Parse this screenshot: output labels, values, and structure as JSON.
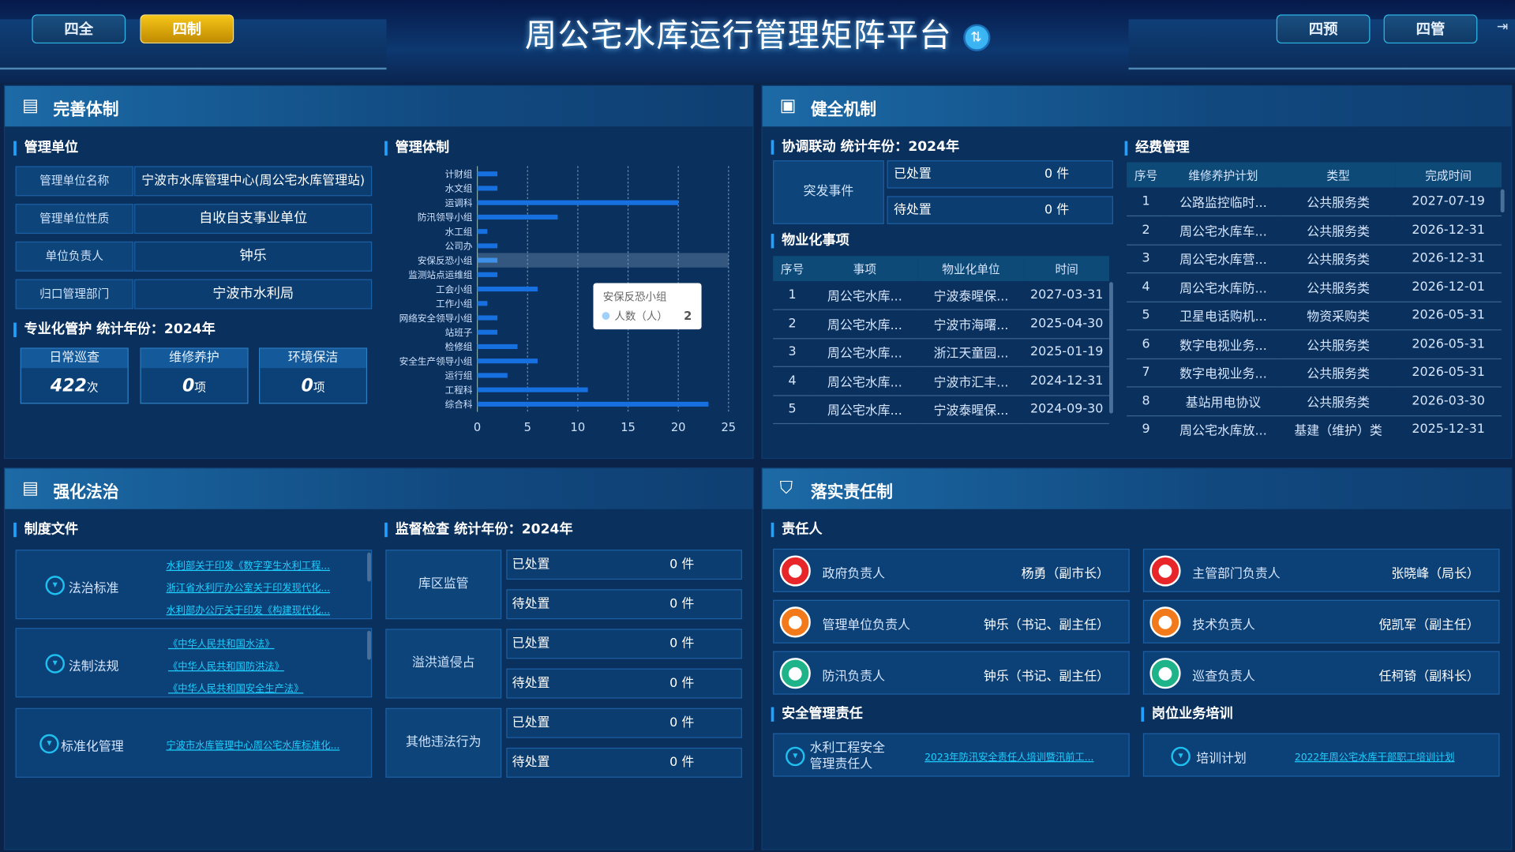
{
  "header": {
    "title": "周公宅水库运行管理矩阵平台",
    "nav": [
      "四全",
      "四制",
      "四预",
      "四管"
    ],
    "active": "四制",
    "badge": "⇅"
  },
  "colors": {
    "accent": "#20a0ff",
    "active_nav": "#f5c518",
    "bar": "#1670e0",
    "link": "#1ed0ff",
    "red": "#e8262a",
    "orange": "#f27a1a",
    "green": "#1fb38a"
  },
  "panel1": {
    "title": "完善体制",
    "unit": {
      "title": "管理单位",
      "rows": [
        {
          "label": "管理单位名称",
          "value": "宁波市水库管理中心(周公宅水库管理站)"
        },
        {
          "label": "管理单位性质",
          "value": "自收自支事业单位"
        },
        {
          "label": "单位负责人",
          "value": "钟乐"
        },
        {
          "label": "归口管理部门",
          "value": "宁波市水利局"
        }
      ]
    },
    "pro": {
      "title": "专业化管护",
      "year": "统计年份：2024年",
      "cards": [
        {
          "label": "日常巡查",
          "value": "422",
          "unit": "次"
        },
        {
          "label": "维修养护",
          "value": "0",
          "unit": "项"
        },
        {
          "label": "环境保洁",
          "value": "0",
          "unit": "项"
        }
      ]
    },
    "chart_title": "管理体制"
  },
  "chart_data": {
    "type": "bar",
    "orientation": "horizontal",
    "categories": [
      "计财组",
      "水文组",
      "运调科",
      "防汛领导小组",
      "水工组",
      "公司办",
      "安保反恐小组",
      "监测站点运维组",
      "工会小组",
      "工作小组",
      "网络安全领导小组",
      "站班子",
      "检修组",
      "安全生产领导小组",
      "运行组",
      "工程科",
      "综合科"
    ],
    "series": [
      {
        "name": "人数（人）",
        "values": [
          2,
          2,
          20,
          8,
          1,
          2,
          2,
          2,
          6,
          1,
          2,
          2,
          4,
          6,
          3,
          11,
          23
        ]
      }
    ],
    "xlim": [
      0,
      25
    ],
    "xticks": [
      0,
      5,
      10,
      15,
      20,
      25
    ],
    "grid": true,
    "tooltip": {
      "category": "安保反恐小组",
      "series": "人数（人）",
      "value": "2"
    }
  },
  "panel2": {
    "title": "健全机制",
    "coord": {
      "title": "协调联动",
      "year": "统计年份：2024年",
      "label": "突发事件",
      "rows": [
        {
          "k": "已处置",
          "v": "0 件"
        },
        {
          "k": "待处置",
          "v": "0 件"
        }
      ]
    },
    "prop": {
      "title": "物业化事项",
      "headers": [
        "序号",
        "事项",
        "物业化单位",
        "时间"
      ],
      "rows": [
        [
          "1",
          "周公宅水库...",
          "宁波泰暒保...",
          "2027-03-31"
        ],
        [
          "2",
          "周公宅水库...",
          "宁波市海曙...",
          "2025-04-30"
        ],
        [
          "3",
          "周公宅水库...",
          "浙江天童园...",
          "2025-01-19"
        ],
        [
          "4",
          "周公宅水库...",
          "宁波市汇丰...",
          "2024-12-31"
        ],
        [
          "5",
          "周公宅水库...",
          "宁波泰暒保...",
          "2024-09-30"
        ]
      ]
    },
    "fund": {
      "title": "经费管理",
      "headers": [
        "序号",
        "维修养护计划",
        "类型",
        "完成时间"
      ],
      "rows": [
        [
          "1",
          "公路监控临时...",
          "公共服务类",
          "2027-07-19"
        ],
        [
          "2",
          "周公宅水库车...",
          "公共服务类",
          "2026-12-31"
        ],
        [
          "3",
          "周公宅水库营...",
          "公共服务类",
          "2026-12-31"
        ],
        [
          "4",
          "周公宅水库防...",
          "公共服务类",
          "2026-12-01"
        ],
        [
          "5",
          "卫星电话购机...",
          "物资采购类",
          "2026-05-31"
        ],
        [
          "6",
          "数字电视业务...",
          "公共服务类",
          "2026-05-31"
        ],
        [
          "7",
          "数字电视业务...",
          "公共服务类",
          "2026-05-31"
        ],
        [
          "8",
          "基站用电协议",
          "公共服务类",
          "2026-03-30"
        ],
        [
          "9",
          "周公宅水库放...",
          "基建（维护）类",
          "2025-12-31"
        ]
      ]
    }
  },
  "panel3": {
    "title": "强化法治",
    "docs": {
      "title": "制度文件",
      "groups": [
        {
          "label": "法治标准",
          "links": [
            "水利部关于印发《数字孪生水利工程...",
            "浙江省水利厅办公室关于印发现代化...",
            "水利部办公厅关于印发《构建现代化..."
          ]
        },
        {
          "label": "法制法规",
          "links": [
            "《中华人民共和国水法》",
            "《中华人民共和国防洪法》",
            "《中华人民共和国安全生产法》"
          ]
        },
        {
          "label": "标准化管理",
          "links": [
            "宁波市水库管理中心周公宅水库标准化..."
          ]
        }
      ]
    },
    "inspect": {
      "title": "监督检查",
      "year": "统计年份：2024年",
      "groups": [
        {
          "label": "库区监管",
          "rows": [
            {
              "k": "已处置",
              "v": "0 件"
            },
            {
              "k": "待处置",
              "v": "0 件"
            }
          ]
        },
        {
          "label": "溢洪道侵占",
          "rows": [
            {
              "k": "已处置",
              "v": "0 件"
            },
            {
              "k": "待处置",
              "v": "0 件"
            }
          ]
        },
        {
          "label": "其他违法行为",
          "rows": [
            {
              "k": "已处置",
              "v": "0 件"
            },
            {
              "k": "待处置",
              "v": "0 件"
            }
          ]
        }
      ]
    }
  },
  "panel4": {
    "title": "落实责任制",
    "resp": {
      "title": "责任人",
      "people": [
        {
          "role": "政府负责人",
          "name": "杨勇（副市长）",
          "color": "red"
        },
        {
          "role": "主管部门负责人",
          "name": "张晓峰（局长）",
          "color": "red"
        },
        {
          "role": "管理单位负责人",
          "name": "钟乐（书记、副主任）",
          "color": "orange"
        },
        {
          "role": "技术负责人",
          "name": "倪凯军（副主任）",
          "color": "orange"
        },
        {
          "role": "防汛负责人",
          "name": "钟乐（书记、副主任）",
          "color": "green"
        },
        {
          "role": "巡查负责人",
          "name": "任柯锜（副科长）",
          "color": "green"
        }
      ]
    },
    "safety": {
      "title": "安全管理责任",
      "label": "水利工程安全管理责任人",
      "link": "2023年防汛安全责任人培训暨汛前工..."
    },
    "train": {
      "title": "岗位业务培训",
      "label": "培训计划",
      "link": "2022年周公宅水库干部职工培训计划"
    }
  }
}
